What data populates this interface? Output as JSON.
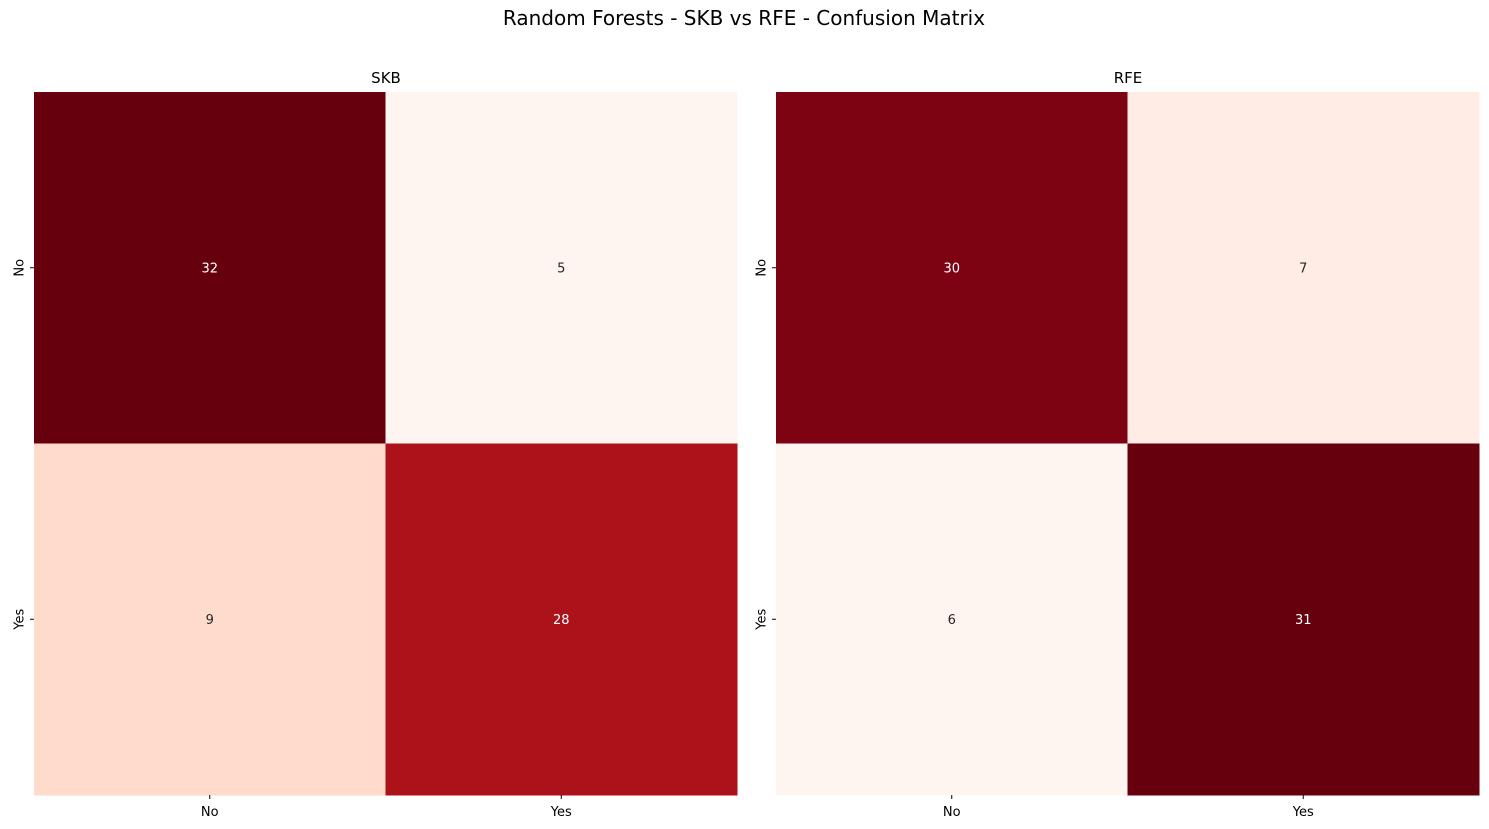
{
  "figure": {
    "title": "Random Forests - SKB vs RFE - Confusion Matrix"
  },
  "chart_data": [
    {
      "type": "heatmap",
      "title": "SKB",
      "xlabel": "",
      "ylabel": "",
      "x_tick_labels": [
        "No",
        "Yes"
      ],
      "y_tick_labels": [
        "No",
        "Yes"
      ],
      "values": [
        [
          32,
          5
        ],
        [
          9,
          28
        ]
      ],
      "colormap": "Reds",
      "colorbar": false,
      "annotated": true,
      "cell_colors": [
        [
          "#67000d",
          "#fff5f0"
        ],
        [
          "#fedbcb",
          "#ab1219"
        ]
      ],
      "text_colors": [
        [
          "#ffffff",
          "#262626"
        ],
        [
          "#262626",
          "#ffffff"
        ]
      ]
    },
    {
      "type": "heatmap",
      "title": "RFE",
      "xlabel": "",
      "ylabel": "",
      "x_tick_labels": [
        "No",
        "Yes"
      ],
      "y_tick_labels": [
        "No",
        "Yes"
      ],
      "values": [
        [
          30,
          7
        ],
        [
          6,
          31
        ]
      ],
      "colormap": "Reds",
      "colorbar": false,
      "annotated": true,
      "cell_colors": [
        [
          "#7d0312",
          "#ffece4"
        ],
        [
          "#fff5f0",
          "#67000d"
        ]
      ],
      "text_colors": [
        [
          "#ffffff",
          "#262626"
        ],
        [
          "#262626",
          "#ffffff"
        ]
      ]
    }
  ]
}
